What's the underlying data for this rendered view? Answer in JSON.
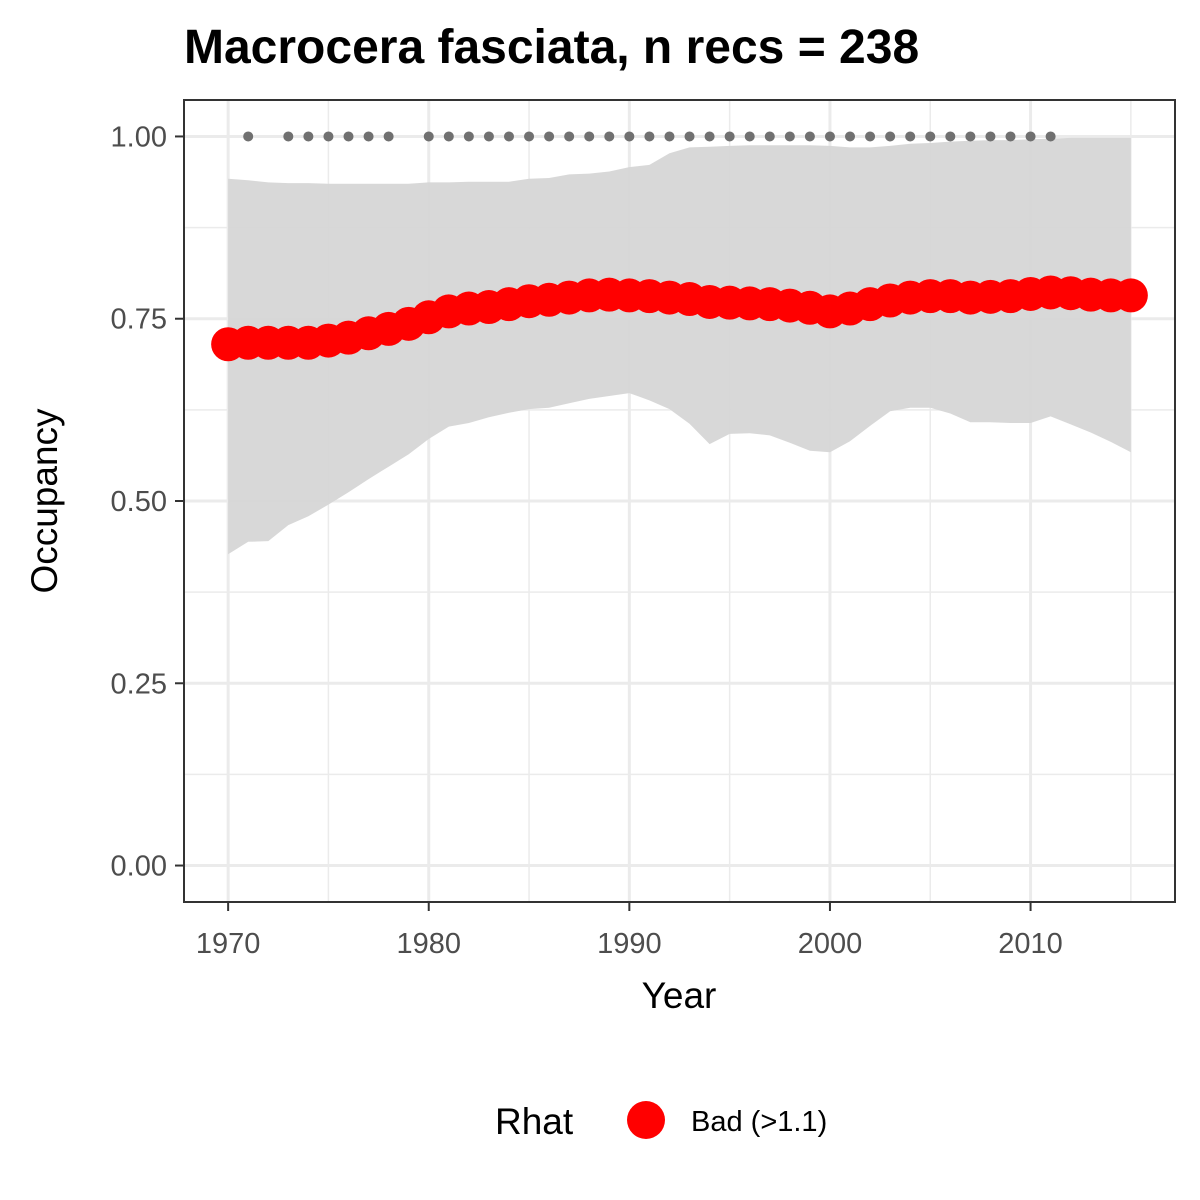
{
  "chart_data": {
    "type": "line",
    "title": "Macrocera fasciata, n recs = 238",
    "xlabel": "Year",
    "ylabel": "Occupancy",
    "xlim": [
      1967.8,
      2017.2
    ],
    "ylim": [
      -0.05,
      1.05
    ],
    "x_ticks": [
      1970,
      1980,
      1990,
      2000,
      2010
    ],
    "y_ticks": [
      0.0,
      0.25,
      0.5,
      0.75,
      1.0
    ],
    "y_tick_labels": [
      "0.00",
      "0.25",
      "0.50",
      "0.75",
      "1.00"
    ],
    "grid": true,
    "legend_position": "bottom",
    "legend": {
      "title": "Rhat",
      "entries": [
        {
          "label": "Bad (>1.1)",
          "color": "#ff0000"
        }
      ]
    },
    "colors": {
      "points": "#ff0000",
      "ribbon": "#d6d6d6",
      "record_dots": "#707070",
      "panel_border": "#333333",
      "grid": "#ebebeb"
    },
    "x": [
      1970,
      1971,
      1972,
      1973,
      1974,
      1975,
      1976,
      1977,
      1978,
      1979,
      1980,
      1981,
      1982,
      1983,
      1984,
      1985,
      1986,
      1987,
      1988,
      1989,
      1990,
      1991,
      1992,
      1993,
      1994,
      1995,
      1996,
      1997,
      1998,
      1999,
      2000,
      2001,
      2002,
      2003,
      2004,
      2005,
      2006,
      2007,
      2008,
      2009,
      2010,
      2011,
      2012,
      2013,
      2014,
      2015
    ],
    "series": [
      {
        "values": [
          0.715,
          0.717,
          0.717,
          0.717,
          0.717,
          0.72,
          0.724,
          0.73,
          0.736,
          0.743,
          0.752,
          0.76,
          0.764,
          0.766,
          0.77,
          0.774,
          0.776,
          0.779,
          0.782,
          0.783,
          0.782,
          0.781,
          0.779,
          0.777,
          0.773,
          0.772,
          0.771,
          0.77,
          0.768,
          0.765,
          0.76,
          0.764,
          0.77,
          0.775,
          0.779,
          0.781,
          0.781,
          0.779,
          0.78,
          0.781,
          0.784,
          0.786,
          0.785,
          0.783,
          0.782,
          0.782
        ],
        "lower": [
          0.427,
          0.444,
          0.445,
          0.467,
          0.479,
          0.495,
          0.512,
          0.53,
          0.547,
          0.564,
          0.585,
          0.602,
          0.607,
          0.615,
          0.621,
          0.626,
          0.628,
          0.634,
          0.64,
          0.644,
          0.648,
          0.638,
          0.626,
          0.606,
          0.578,
          0.592,
          0.593,
          0.59,
          0.58,
          0.569,
          0.567,
          0.582,
          0.603,
          0.623,
          0.628,
          0.628,
          0.62,
          0.608,
          0.608,
          0.607,
          0.607,
          0.616,
          0.605,
          0.594,
          0.581,
          0.567
        ],
        "upper": [
          0.942,
          0.94,
          0.937,
          0.936,
          0.936,
          0.935,
          0.935,
          0.935,
          0.935,
          0.935,
          0.937,
          0.937,
          0.938,
          0.938,
          0.938,
          0.942,
          0.943,
          0.948,
          0.949,
          0.952,
          0.958,
          0.961,
          0.977,
          0.985,
          0.986,
          0.987,
          0.988,
          0.988,
          0.988,
          0.988,
          0.987,
          0.985,
          0.985,
          0.987,
          0.99,
          0.991,
          0.993,
          0.994,
          0.995,
          0.995,
          0.996,
          0.997,
          0.998,
          0.998,
          0.998,
          0.998
        ]
      }
    ],
    "record_years": [
      1971,
      1973,
      1974,
      1975,
      1976,
      1977,
      1978,
      1980,
      1981,
      1982,
      1983,
      1984,
      1985,
      1986,
      1987,
      1988,
      1989,
      1990,
      1991,
      1992,
      1993,
      1994,
      1995,
      1996,
      1997,
      1998,
      1999,
      2000,
      2001,
      2002,
      2003,
      2004,
      2005,
      2006,
      2007,
      2008,
      2009,
      2010,
      2011
    ],
    "record_value": 1.0
  }
}
